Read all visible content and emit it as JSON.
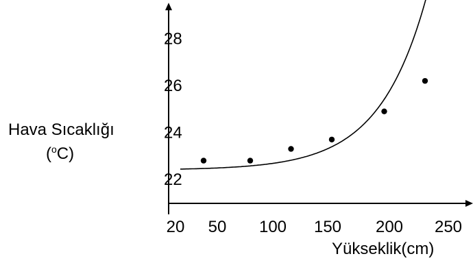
{
  "chart_data": {
    "type": "scatter",
    "title": "",
    "ylabel_line1": "Hava Sıcaklığı",
    "ylabel_unit_open": "(",
    "ylabel_unit_sup": "o",
    "ylabel_unit_close": "C)",
    "xlabel": "Yükseklik(cm)",
    "x_ticks": [
      "20",
      "50",
      "100",
      "150",
      "200",
      "250"
    ],
    "y_ticks": [
      "22",
      "24",
      "26",
      "28"
    ],
    "xlim": [
      20,
      260
    ],
    "ylim": [
      21.3,
      29
    ],
    "points": [
      {
        "x": 50,
        "y": 22.8
      },
      {
        "x": 90,
        "y": 22.8
      },
      {
        "x": 125,
        "y": 23.3
      },
      {
        "x": 160,
        "y": 23.7
      },
      {
        "x": 205,
        "y": 24.9
      },
      {
        "x": 240,
        "y": 26.2
      }
    ],
    "curve": {
      "x0": 30,
      "x1": 258
    },
    "grid": false,
    "legend": "none"
  }
}
